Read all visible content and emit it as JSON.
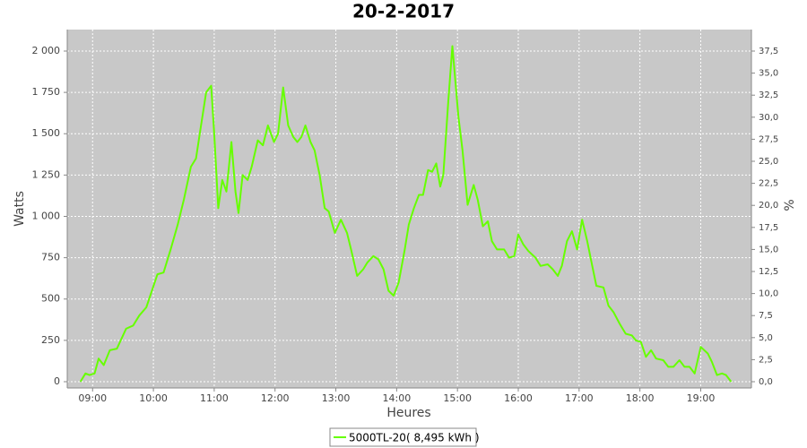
{
  "chart_data": {
    "type": "line",
    "title": "20-2-2017",
    "x_label": "Heures",
    "y_label": "Watts",
    "y2_label": "%",
    "x": [
      "08:48",
      "08:53",
      "08:57",
      "09:02",
      "09:06",
      "09:11",
      "09:17",
      "09:24",
      "09:33",
      "09:40",
      "09:46",
      "09:53",
      "09:59",
      "10:04",
      "10:10",
      "10:17",
      "10:24",
      "10:30",
      "10:37",
      "10:42",
      "10:47",
      "10:52",
      "10:57",
      "11:00",
      "11:04",
      "11:08",
      "11:12",
      "11:17",
      "11:21",
      "11:24",
      "11:28",
      "11:33",
      "11:37",
      "11:43",
      "11:48",
      "11:53",
      "11:59",
      "12:03",
      "12:08",
      "12:13",
      "12:18",
      "12:22",
      "12:26",
      "12:30",
      "12:35",
      "12:39",
      "12:44",
      "12:49",
      "12:53",
      "12:59",
      "13:05",
      "13:11",
      "13:15",
      "13:21",
      "13:27",
      "13:31",
      "13:37",
      "13:42",
      "13:47",
      "13:52",
      "13:57",
      "14:02",
      "14:08",
      "14:12",
      "14:17",
      "14:22",
      "14:26",
      "14:31",
      "14:35",
      "14:39",
      "14:43",
      "14:46",
      "14:51",
      "14:55",
      "15:01",
      "15:05",
      "15:10",
      "15:16",
      "15:20",
      "15:25",
      "15:30",
      "15:34",
      "15:39",
      "15:46",
      "15:51",
      "15:56",
      "16:00",
      "16:05",
      "16:10",
      "16:17",
      "16:22",
      "16:29",
      "16:34",
      "16:39",
      "16:43",
      "16:48",
      "16:53",
      "16:58",
      "17:03",
      "17:08",
      "17:13",
      "17:17",
      "17:24",
      "17:29",
      "17:34",
      "17:40",
      "17:46",
      "17:52",
      "17:56",
      "18:01",
      "18:06",
      "18:11",
      "18:16",
      "18:23",
      "18:28",
      "18:33",
      "18:39",
      "18:44",
      "18:49",
      "18:54",
      "19:00",
      "19:07",
      "19:11",
      "19:16",
      "19:21",
      "19:25",
      "19:30"
    ],
    "series": [
      {
        "name": "5000TL-20( 8,495 kWh )",
        "color": "#66ff00",
        "values": [
          0,
          50,
          40,
          50,
          140,
          100,
          190,
          200,
          320,
          340,
          400,
          450,
          560,
          650,
          660,
          800,
          950,
          1100,
          1300,
          1350,
          1550,
          1750,
          1790,
          1500,
          1050,
          1220,
          1150,
          1450,
          1150,
          1020,
          1250,
          1220,
          1300,
          1460,
          1430,
          1550,
          1450,
          1500,
          1780,
          1550,
          1480,
          1450,
          1480,
          1550,
          1450,
          1400,
          1250,
          1050,
          1030,
          900,
          980,
          900,
          800,
          640,
          680,
          720,
          760,
          740,
          680,
          550,
          520,
          600,
          800,
          950,
          1050,
          1130,
          1130,
          1280,
          1270,
          1320,
          1180,
          1250,
          1700,
          2030,
          1600,
          1400,
          1070,
          1190,
          1100,
          940,
          970,
          850,
          800,
          800,
          750,
          760,
          890,
          830,
          790,
          750,
          700,
          710,
          680,
          640,
          700,
          850,
          910,
          800,
          980,
          850,
          700,
          580,
          570,
          460,
          420,
          350,
          290,
          280,
          250,
          240,
          150,
          190,
          140,
          130,
          90,
          90,
          130,
          90,
          90,
          50,
          210,
          170,
          120,
          40,
          50,
          40,
          0
        ]
      }
    ],
    "xlim": [
      "08:35",
      "19:50"
    ],
    "xticks": [
      "09:00",
      "10:00",
      "11:00",
      "12:00",
      "13:00",
      "14:00",
      "15:00",
      "16:00",
      "17:00",
      "18:00",
      "19:00"
    ],
    "ylim": [
      -38,
      2130
    ],
    "yticks": [
      0,
      250,
      500,
      750,
      {
        "value": 1000,
        "label": "1 000"
      },
      {
        "value": 1250,
        "label": "1 250"
      },
      {
        "value": 1500,
        "label": "1 500"
      },
      {
        "value": 1750,
        "label": "1 750"
      },
      {
        "value": 2000,
        "label": "2 000"
      }
    ],
    "y2lim": [
      -0.71,
      39.94
    ],
    "y2ticks": [
      {
        "value": 0,
        "label": "0,0"
      },
      {
        "value": 2.5,
        "label": "2,5"
      },
      {
        "value": 5,
        "label": "5,0"
      },
      {
        "value": 7.5,
        "label": "7,5"
      },
      {
        "value": 10,
        "label": "10,0"
      },
      {
        "value": 12.5,
        "label": "12,5"
      },
      {
        "value": 15,
        "label": "15,0"
      },
      {
        "value": 17.5,
        "label": "17,5"
      },
      {
        "value": 20,
        "label": "20,0"
      },
      {
        "value": 22.5,
        "label": "22,5"
      },
      {
        "value": 25,
        "label": "25,0"
      },
      {
        "value": 27.5,
        "label": "27,5"
      },
      {
        "value": 30,
        "label": "30,0"
      },
      {
        "value": 32.5,
        "label": "32,5"
      },
      {
        "value": 35,
        "label": "35,0"
      },
      {
        "value": 37.5,
        "label": "37,5"
      }
    ],
    "grid": true,
    "legend": "bottom"
  }
}
